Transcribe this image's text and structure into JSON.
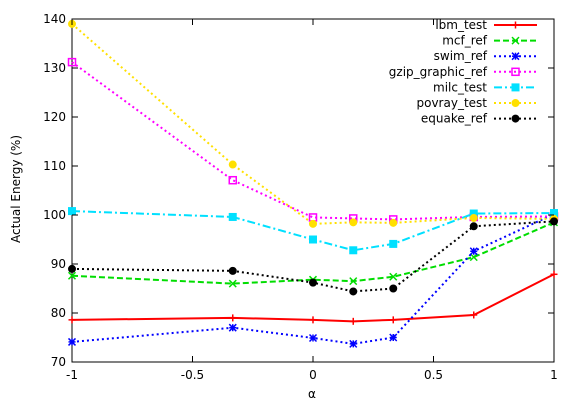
{
  "chart_data": {
    "type": "line",
    "xlabel": "α",
    "ylabel": "Actual Energy (%)",
    "xlim": [
      -1,
      1
    ],
    "ylim": [
      70,
      140
    ],
    "xticks": [
      -1,
      -0.5,
      0,
      0.5,
      1
    ],
    "xtick_labels": [
      "-1",
      "-0.5",
      "0",
      "0.5",
      "1"
    ],
    "yticks": [
      70,
      80,
      90,
      100,
      110,
      120,
      130,
      140
    ],
    "ytick_labels": [
      "70",
      "80",
      "90",
      "100",
      "110",
      "120",
      "130",
      "140"
    ],
    "grid": false,
    "legend_position": "top-right",
    "x": [
      -1,
      -0.333,
      0,
      0.167,
      0.333,
      0.667,
      1
    ],
    "series": [
      {
        "name": "lbm_test",
        "color": "#ff0000",
        "marker": "plus",
        "dash": "solid",
        "values": [
          78.6,
          79.0,
          78.6,
          78.3,
          78.6,
          79.6,
          87.9
        ]
      },
      {
        "name": "mcf_ref",
        "color": "#00dd00",
        "marker": "x",
        "dash": "dashed",
        "values": [
          87.6,
          86.0,
          86.8,
          86.5,
          87.4,
          91.4,
          98.5
        ]
      },
      {
        "name": "swim_ref",
        "color": "#0000ff",
        "marker": "star",
        "dash": "dotted",
        "values": [
          74.1,
          77.0,
          74.9,
          73.7,
          75.0,
          92.6,
          100.2
        ]
      },
      {
        "name": "gzip_graphic_ref",
        "color": "#ff00ff",
        "marker": "square",
        "dash": "dotted",
        "values": [
          131.2,
          107.1,
          99.5,
          99.3,
          99.1,
          99.6,
          99.7
        ]
      },
      {
        "name": "milc_test",
        "color": "#00e0ff",
        "marker": "filled-square",
        "dash": "dashdot",
        "values": [
          100.8,
          99.6,
          95.0,
          92.8,
          94.1,
          100.3,
          100.4
        ]
      },
      {
        "name": "povray_test",
        "color": "#ffe000",
        "marker": "filled-circle",
        "dash": "dotted",
        "values": [
          139.0,
          110.3,
          98.2,
          98.5,
          98.4,
          99.4,
          99.2
        ]
      },
      {
        "name": "equake_ref",
        "color": "#000000",
        "marker": "filled-circle",
        "dash": "dotted",
        "values": [
          89.0,
          88.6,
          86.2,
          84.4,
          85.0,
          97.7,
          98.7
        ]
      }
    ]
  }
}
